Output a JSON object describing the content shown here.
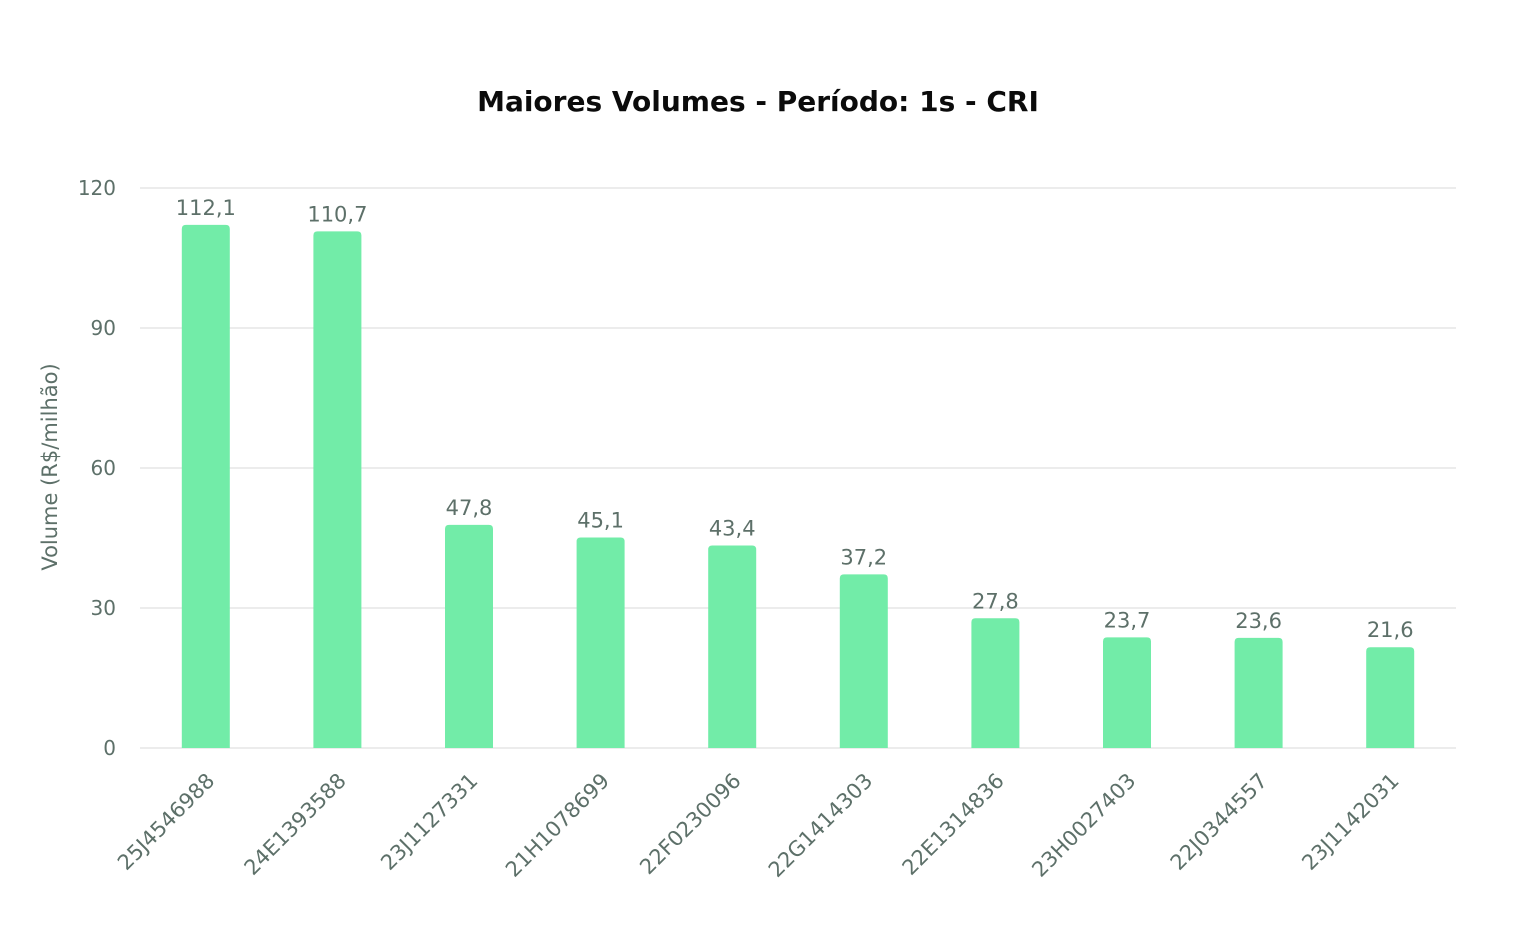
{
  "chart_data": {
    "type": "bar",
    "title": "Maiores Volumes - Período: 1s - CRI",
    "xlabel": "",
    "ylabel": "Volume (R$/milhão)",
    "ylim": [
      0,
      120
    ],
    "yticks": [
      0,
      30,
      60,
      90,
      120
    ],
    "grid": true,
    "legend": "none",
    "bar_color": "#72eca8",
    "categories": [
      "25J4546988",
      "24E1393588",
      "23J1127331",
      "21H1078699",
      "22F0230096",
      "22G1414303",
      "22E1314836",
      "23H0027403",
      "22J0344557",
      "23J1142031"
    ],
    "values": [
      112.1,
      110.7,
      47.8,
      45.1,
      43.4,
      37.2,
      27.8,
      23.7,
      23.6,
      21.6
    ],
    "data_labels": [
      "112,1",
      "110,7",
      "47,8",
      "45,1",
      "43,4",
      "37,2",
      "27,8",
      "23,7",
      "23,6",
      "21,6"
    ]
  }
}
